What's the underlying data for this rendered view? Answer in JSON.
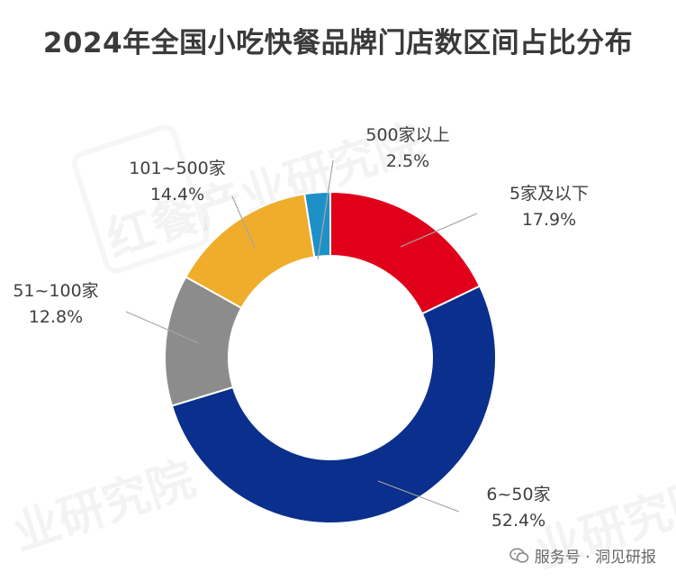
{
  "title": "2024年全国小吃快餐品牌门店数区间占比分布",
  "watermark": {
    "text1": "红餐产业研究院",
    "text2": "业研究院"
  },
  "footer": {
    "text": "服务号 · 洞见研报",
    "icon": "wechat-icon"
  },
  "chart_data": {
    "type": "pie",
    "variant": "donut",
    "title": "2024年全国小吃快餐品牌门店数区间占比分布",
    "unit": "%",
    "slices": [
      {
        "label": "5家及以下",
        "value": 17.9,
        "display": "17.9%",
        "color": "#e0001a"
      },
      {
        "label": "6~50家",
        "value": 52.4,
        "display": "52.4%",
        "color": "#0b2f8c"
      },
      {
        "label": "51~100家",
        "value": 12.8,
        "display": "12.8%",
        "color": "#8c8c8c"
      },
      {
        "label": "101~500家",
        "value": 14.4,
        "display": "14.4%",
        "color": "#efad2b"
      },
      {
        "label": "500家以上",
        "value": 2.5,
        "display": "2.5%",
        "color": "#1e90c8"
      }
    ]
  }
}
